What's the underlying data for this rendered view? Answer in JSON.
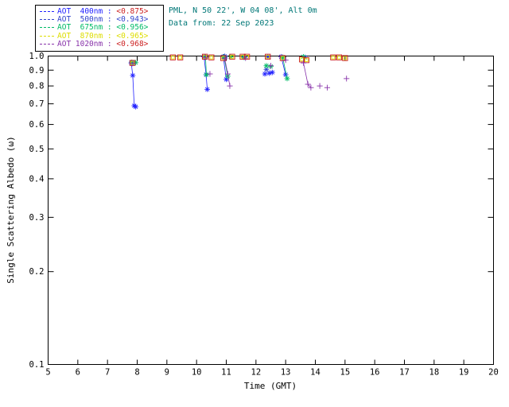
{
  "header": {
    "station_line": "PML, N 50 22', W 04 08', Alt 0m",
    "date_line": "Data from: 22 Sep 2023",
    "text_color": "#007777"
  },
  "legend": {
    "rows": [
      {
        "label": "AOT  400nm : ",
        "value": "<0.875>",
        "label_color": "#2222ff",
        "value_color": "#cc2222"
      },
      {
        "label": "AOT  500nm : ",
        "value": "<0.943>",
        "label_color": "#3344cc",
        "value_color": "#3344cc"
      },
      {
        "label": "AOT  675nm : ",
        "value": "<0.956>",
        "label_color": "#00bb66",
        "value_color": "#00bb66"
      },
      {
        "label": "AOT  870nm : ",
        "value": "<0.965>",
        "label_color": "#dddd00",
        "value_color": "#dddd00"
      },
      {
        "label": "AOT 1020nm : ",
        "value": "<0.968>",
        "label_color": "#8833aa",
        "value_color": "#cc2222"
      }
    ]
  },
  "chart_data": {
    "type": "scatter",
    "title": "",
    "xlabel": "Time (GMT)",
    "ylabel": "Single Scattering Albedo (ω)",
    "xlim": [
      5,
      20
    ],
    "ylim": [
      0.1,
      1.0
    ],
    "yscale": "log",
    "grid": false,
    "xticks": [
      5,
      6,
      7,
      8,
      9,
      10,
      11,
      12,
      13,
      14,
      15,
      16,
      17,
      18,
      19,
      20
    ],
    "yticks": [
      0.1,
      0.2,
      0.3,
      0.4,
      0.5,
      0.6,
      0.7,
      0.8,
      0.9,
      1.0
    ],
    "series": [
      {
        "name": "AOT 400nm",
        "symbol": "star",
        "color": "#2222ff",
        "mean_value": "<0.875>",
        "points": [
          [
            7.8,
            0.95
          ],
          [
            7.85,
            0.865
          ],
          [
            7.9,
            0.69
          ],
          [
            7.95,
            0.685
          ],
          [
            10.25,
            0.995
          ],
          [
            10.32,
            0.87
          ],
          [
            10.36,
            0.78
          ],
          [
            10.9,
            0.995
          ],
          [
            10.95,
            0.998
          ],
          [
            11.0,
            0.84
          ],
          [
            11.6,
            0.995
          ],
          [
            12.3,
            0.875
          ],
          [
            12.45,
            0.88
          ],
          [
            12.55,
            0.885
          ],
          [
            12.4,
            0.995
          ],
          [
            12.85,
            0.995
          ],
          [
            13.0,
            0.87
          ],
          [
            13.65,
            0.99
          ]
        ],
        "lines": [
          [
            [
              7.8,
              0.95
            ],
            [
              7.85,
              0.865
            ],
            [
              7.9,
              0.69
            ]
          ],
          [
            [
              10.25,
              0.995
            ],
            [
              10.32,
              0.87
            ],
            [
              10.36,
              0.78
            ]
          ],
          [
            [
              10.9,
              0.995
            ],
            [
              11.0,
              0.84
            ]
          ],
          [
            [
              12.85,
              0.995
            ],
            [
              13.0,
              0.87
            ]
          ]
        ]
      },
      {
        "name": "AOT 500nm",
        "symbol": "star",
        "color": "#3344cc",
        "mean_value": "<0.943>",
        "points": [
          [
            7.83,
            0.945
          ],
          [
            10.28,
            0.99
          ],
          [
            10.95,
            0.99
          ],
          [
            11.6,
            0.993
          ],
          [
            12.35,
            0.905
          ],
          [
            12.9,
            0.992
          ]
        ],
        "lines": []
      },
      {
        "name": "AOT 675nm",
        "symbol": "star",
        "color": "#00bb66",
        "mean_value": "<0.956>",
        "points": [
          [
            7.82,
            0.955
          ],
          [
            7.95,
            0.952
          ],
          [
            10.3,
            0.995
          ],
          [
            10.33,
            0.87
          ],
          [
            10.92,
            0.995
          ],
          [
            11.05,
            0.86
          ],
          [
            11.15,
            0.995
          ],
          [
            11.6,
            0.99
          ],
          [
            12.35,
            0.93
          ],
          [
            12.5,
            0.925
          ],
          [
            12.9,
            0.99
          ],
          [
            13.05,
            0.845
          ],
          [
            13.6,
            0.995
          ]
        ],
        "lines": [
          [
            [
              10.3,
              0.995
            ],
            [
              10.33,
              0.87
            ]
          ],
          [
            [
              10.92,
              0.995
            ],
            [
              11.05,
              0.86
            ]
          ],
          [
            [
              12.9,
              0.99
            ],
            [
              13.05,
              0.845
            ]
          ]
        ]
      },
      {
        "name": "AOT 870nm",
        "symbol": "square",
        "color": "#dddd00",
        "overlay_color": "#cc2222",
        "mean_value": "<0.965>",
        "points": [
          [
            7.84,
            0.95
          ],
          [
            9.2,
            0.99
          ],
          [
            9.45,
            0.99
          ],
          [
            10.28,
            0.995
          ],
          [
            10.5,
            0.99
          ],
          [
            10.9,
            0.985
          ],
          [
            11.2,
            0.995
          ],
          [
            11.55,
            0.995
          ],
          [
            11.7,
            0.995
          ],
          [
            12.4,
            0.995
          ],
          [
            12.9,
            0.985
          ],
          [
            13.55,
            0.975
          ],
          [
            13.7,
            0.97
          ],
          [
            14.6,
            0.99
          ],
          [
            14.8,
            0.99
          ],
          [
            15.0,
            0.985
          ]
        ],
        "lines": []
      },
      {
        "name": "AOT 1020nm",
        "symbol": "plus",
        "color": "#8833aa",
        "mean_value": "<0.968>",
        "points": [
          [
            7.86,
            0.948
          ],
          [
            10.3,
            0.99
          ],
          [
            10.45,
            0.875
          ],
          [
            10.95,
            0.98
          ],
          [
            11.05,
            0.875
          ],
          [
            11.12,
            0.8
          ],
          [
            11.65,
            0.985
          ],
          [
            12.5,
            0.93
          ],
          [
            13.0,
            0.97
          ],
          [
            13.6,
            0.95
          ],
          [
            13.75,
            0.81
          ],
          [
            13.85,
            0.79
          ],
          [
            14.15,
            0.8
          ],
          [
            14.4,
            0.79
          ],
          [
            15.05,
            0.845
          ]
        ],
        "lines": [
          [
            [
              10.95,
              0.98
            ],
            [
              11.05,
              0.875
            ],
            [
              11.12,
              0.8
            ]
          ],
          [
            [
              13.6,
              0.95
            ],
            [
              13.75,
              0.81
            ],
            [
              13.85,
              0.79
            ]
          ]
        ]
      }
    ]
  }
}
